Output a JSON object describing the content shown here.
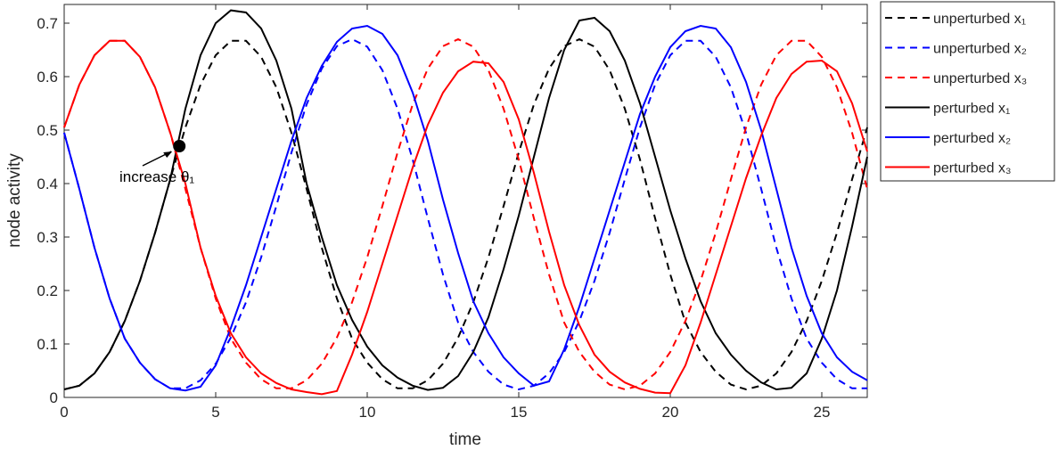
{
  "chart_data": {
    "type": "line",
    "xlabel": "time",
    "ylabel": "node activity",
    "xlim": [
      0,
      26.5
    ],
    "ylim": [
      0,
      0.735
    ],
    "xticks": [
      0,
      5,
      10,
      15,
      20,
      25
    ],
    "yticks": [
      0,
      0.1,
      0.2,
      0.3,
      0.4,
      0.5,
      0.6,
      0.7
    ],
    "grid": false,
    "legend": "outside-right-top",
    "x": [
      0,
      0.5,
      1,
      1.5,
      2,
      2.5,
      3,
      3.5,
      4,
      4.5,
      5,
      5.5,
      6,
      6.5,
      7,
      7.5,
      8,
      8.5,
      9,
      9.5,
      10,
      10.5,
      11,
      11.5,
      12,
      12.5,
      13,
      13.5,
      14,
      14.5,
      15,
      15.5,
      16,
      16.5,
      17,
      17.5,
      18,
      18.5,
      19,
      19.5,
      20,
      20.5,
      21,
      21.5,
      22,
      22.5,
      23,
      23.5,
      24,
      24.5,
      25,
      25.5,
      26,
      26.5
    ],
    "series": [
      {
        "name": "unperturbed x₁",
        "color": "#000000",
        "linestyle": "dashed",
        "values": [
          0.015,
          0.022,
          0.045,
          0.085,
          0.143,
          0.218,
          0.308,
          0.408,
          0.505,
          0.585,
          0.64,
          0.667,
          0.667,
          0.637,
          0.58,
          0.495,
          0.39,
          0.28,
          0.185,
          0.11,
          0.065,
          0.034,
          0.017,
          0.017,
          0.032,
          0.063,
          0.112,
          0.178,
          0.262,
          0.358,
          0.458,
          0.548,
          0.615,
          0.657,
          0.67,
          0.656,
          0.612,
          0.54,
          0.445,
          0.335,
          0.23,
          0.14,
          0.085,
          0.048,
          0.024,
          0.015,
          0.022,
          0.045,
          0.085,
          0.143,
          0.218,
          0.308,
          0.408,
          0.505
        ]
      },
      {
        "name": "unperturbed x₂",
        "color": "#0000ff",
        "linestyle": "dashed",
        "values": [
          0.495,
          0.39,
          0.28,
          0.185,
          0.11,
          0.065,
          0.034,
          0.017,
          0.017,
          0.032,
          0.063,
          0.112,
          0.178,
          0.262,
          0.358,
          0.458,
          0.548,
          0.615,
          0.657,
          0.67,
          0.656,
          0.612,
          0.54,
          0.445,
          0.335,
          0.23,
          0.14,
          0.085,
          0.048,
          0.024,
          0.015,
          0.022,
          0.045,
          0.085,
          0.143,
          0.218,
          0.308,
          0.408,
          0.505,
          0.585,
          0.64,
          0.667,
          0.667,
          0.637,
          0.58,
          0.495,
          0.39,
          0.28,
          0.185,
          0.11,
          0.065,
          0.034,
          0.017,
          0.017
        ]
      },
      {
        "name": "unperturbed x₃",
        "color": "#ff0000",
        "linestyle": "dashed",
        "values": [
          0.505,
          0.585,
          0.64,
          0.667,
          0.667,
          0.637,
          0.58,
          0.495,
          0.39,
          0.28,
          0.185,
          0.11,
          0.065,
          0.034,
          0.017,
          0.017,
          0.032,
          0.063,
          0.112,
          0.178,
          0.262,
          0.358,
          0.458,
          0.548,
          0.615,
          0.657,
          0.67,
          0.656,
          0.612,
          0.54,
          0.445,
          0.335,
          0.23,
          0.14,
          0.085,
          0.048,
          0.024,
          0.015,
          0.022,
          0.045,
          0.085,
          0.143,
          0.218,
          0.308,
          0.408,
          0.505,
          0.585,
          0.64,
          0.667,
          0.667,
          0.637,
          0.58,
          0.495,
          0.39
        ]
      },
      {
        "name": "perturbed x₁",
        "color": "#000000",
        "linestyle": "solid",
        "values": [
          0.015,
          0.022,
          0.045,
          0.085,
          0.143,
          0.218,
          0.308,
          0.408,
          0.54,
          0.64,
          0.7,
          0.724,
          0.72,
          0.69,
          0.63,
          0.54,
          0.4,
          0.3,
          0.21,
          0.145,
          0.095,
          0.06,
          0.037,
          0.022,
          0.014,
          0.018,
          0.04,
          0.085,
          0.15,
          0.24,
          0.34,
          0.45,
          0.56,
          0.65,
          0.705,
          0.71,
          0.685,
          0.63,
          0.55,
          0.45,
          0.35,
          0.26,
          0.18,
          0.12,
          0.08,
          0.05,
          0.028,
          0.015,
          0.018,
          0.045,
          0.11,
          0.2,
          0.32,
          0.45
        ]
      },
      {
        "name": "perturbed x₂",
        "color": "#0000ff",
        "linestyle": "solid",
        "values": [
          0.495,
          0.39,
          0.28,
          0.185,
          0.11,
          0.065,
          0.034,
          0.017,
          0.013,
          0.02,
          0.06,
          0.13,
          0.21,
          0.3,
          0.39,
          0.48,
          0.56,
          0.62,
          0.665,
          0.69,
          0.695,
          0.68,
          0.64,
          0.57,
          0.48,
          0.37,
          0.27,
          0.18,
          0.12,
          0.075,
          0.045,
          0.022,
          0.03,
          0.09,
          0.17,
          0.26,
          0.35,
          0.44,
          0.53,
          0.6,
          0.655,
          0.685,
          0.695,
          0.69,
          0.655,
          0.59,
          0.5,
          0.39,
          0.28,
          0.19,
          0.12,
          0.075,
          0.048,
          0.032
        ]
      },
      {
        "name": "perturbed x₃",
        "color": "#ff0000",
        "linestyle": "solid",
        "values": [
          0.505,
          0.585,
          0.64,
          0.667,
          0.667,
          0.637,
          0.58,
          0.495,
          0.4,
          0.28,
          0.19,
          0.12,
          0.075,
          0.045,
          0.027,
          0.015,
          0.01,
          0.006,
          0.012,
          0.08,
          0.16,
          0.25,
          0.34,
          0.43,
          0.51,
          0.57,
          0.61,
          0.628,
          0.625,
          0.59,
          0.52,
          0.42,
          0.31,
          0.21,
          0.135,
          0.08,
          0.048,
          0.028,
          0.016,
          0.009,
          0.008,
          0.06,
          0.14,
          0.23,
          0.32,
          0.41,
          0.49,
          0.56,
          0.605,
          0.628,
          0.63,
          0.61,
          0.55,
          0.46
        ]
      }
    ],
    "annotation": {
      "text": "increase θ₁",
      "point": [
        3.8,
        0.47
      ]
    }
  }
}
